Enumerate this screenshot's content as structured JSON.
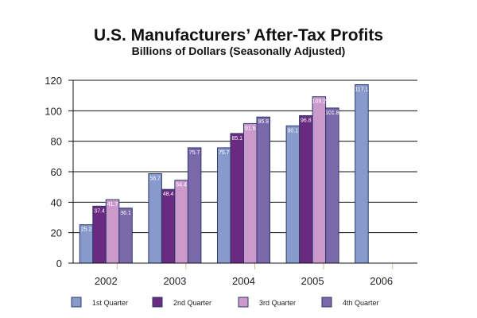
{
  "chart_data": {
    "type": "bar",
    "title": "U.S. Manufacturers’ After-Tax Profits",
    "subtitle": "Billions of Dollars (Seasonally Adjusted)",
    "xlabel": "",
    "ylabel": "",
    "ylim": [
      0,
      120
    ],
    "yticks": [
      0,
      20,
      40,
      60,
      80,
      100,
      120
    ],
    "grid": true,
    "legend_position": "bottom",
    "categories": [
      "2002",
      "2003",
      "2004",
      "2005",
      "2006"
    ],
    "series": [
      {
        "name": "1st Quarter",
        "color": "#8899cc",
        "values": [
          25.2,
          58.7,
          75.7,
          90.1,
          117.1
        ]
      },
      {
        "name": "2nd Quarter",
        "color": "#6a2a80",
        "values": [
          37.4,
          48.4,
          85.1,
          96.8,
          null
        ]
      },
      {
        "name": "3rd Quarter",
        "color": "#cc99cc",
        "values": [
          41.7,
          54.4,
          91.6,
          109.2,
          null
        ]
      },
      {
        "name": "4th Quarter",
        "color": "#7b68aa",
        "values": [
          36.1,
          75.7,
          95.9,
          101.8,
          null
        ]
      }
    ]
  }
}
